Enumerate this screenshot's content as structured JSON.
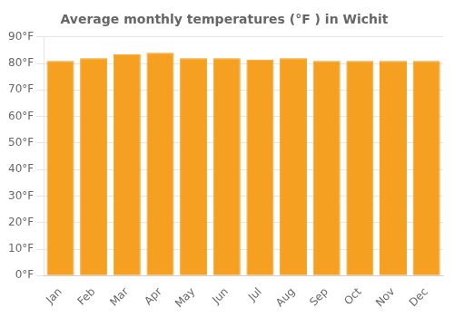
{
  "chart_data": {
    "type": "bar",
    "title": "Average monthly temperatures (°F ) in Wichit",
    "categories": [
      "Jan",
      "Feb",
      "Mar",
      "Apr",
      "May",
      "Jun",
      "Jul",
      "Aug",
      "Sep",
      "Oct",
      "Nov",
      "Dec"
    ],
    "values": [
      81,
      82,
      83.5,
      84,
      82,
      82,
      81.5,
      82,
      81,
      81,
      81,
      81
    ],
    "color": "#F5A020",
    "ylim": [
      0,
      90
    ],
    "yticks": [
      {
        "value": 0,
        "label": "0°F"
      },
      {
        "value": 10,
        "label": "10°F"
      },
      {
        "value": 20,
        "label": "20°F"
      },
      {
        "value": 30,
        "label": "30°F"
      },
      {
        "value": 40,
        "label": "40°F"
      },
      {
        "value": 50,
        "label": "50°F"
      },
      {
        "value": 60,
        "label": "60°F"
      },
      {
        "value": 70,
        "label": "70°F"
      },
      {
        "value": 80,
        "label": "80°F"
      },
      {
        "value": 90,
        "label": "90°F"
      }
    ],
    "grid": true
  }
}
